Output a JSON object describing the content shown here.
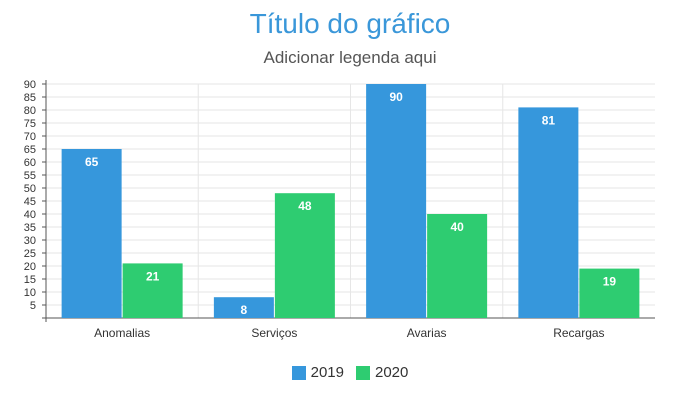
{
  "chart_data": {
    "type": "bar",
    "title": "Título do gráfico",
    "subtitle": "Adicionar legenda aqui",
    "categories": [
      "Anomalias",
      "Serviços",
      "Avarias",
      "Recargas"
    ],
    "series": [
      {
        "name": "2019",
        "color": "#3697dc",
        "values": [
          65,
          8,
          90,
          81
        ]
      },
      {
        "name": "2020",
        "color": "#2ecc71",
        "values": [
          21,
          48,
          40,
          19
        ]
      }
    ],
    "ylim": [
      0,
      90
    ],
    "yticks": [
      5,
      10,
      15,
      20,
      25,
      30,
      35,
      40,
      45,
      50,
      55,
      60,
      65,
      70,
      75,
      80,
      85,
      90
    ],
    "grid": true,
    "legend_position": "bottom"
  }
}
